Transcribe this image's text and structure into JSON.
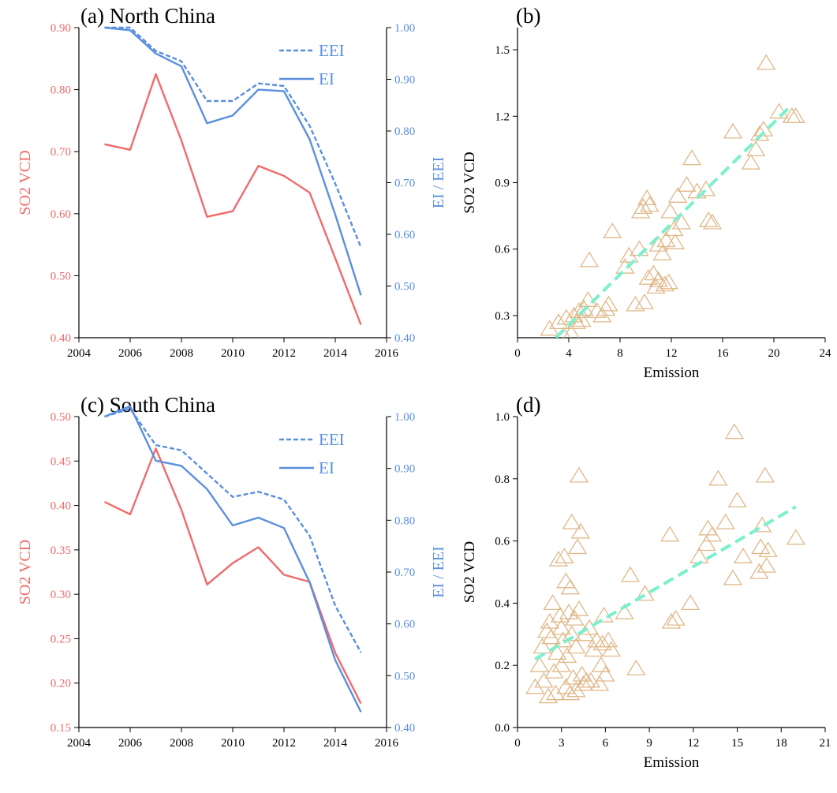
{
  "colors": {
    "so2": "#f06b6b",
    "ei": "#5b8fde",
    "scatter": "#e0b98a",
    "fit": "#7af0cc",
    "axis": "#000000"
  },
  "chart_data": [
    {
      "id": "a",
      "type": "line",
      "title": "(a) North China",
      "x": [
        2005,
        2006,
        2007,
        2008,
        2009,
        2010,
        2011,
        2012,
        2013,
        2014,
        2015
      ],
      "xlim": [
        2004,
        2016
      ],
      "xticks": [
        "2004",
        "2006",
        "2008",
        "2010",
        "2012",
        "2014",
        "2016"
      ],
      "ylabel_left": "SO2 VCD",
      "ylim_left": [
        0.4,
        0.9
      ],
      "yticks_left": [
        "0.40",
        "0.50",
        "0.60",
        "0.70",
        "0.80",
        "0.90"
      ],
      "ylabel_right": "EI / EEI",
      "ylim_right": [
        0.4,
        1.0
      ],
      "yticks_right": [
        "0.40",
        "0.50",
        "0.60",
        "0.70",
        "0.80",
        "0.90",
        "1.00"
      ],
      "legend": {
        "position": "top-right",
        "entries": [
          "EEI",
          "EI"
        ]
      },
      "series": [
        {
          "name": "SO2 VCD",
          "axis": "left",
          "style": "solid",
          "values": [
            0.712,
            0.703,
            0.825,
            0.718,
            0.595,
            0.604,
            0.677,
            0.661,
            0.634,
            0.528,
            0.421
          ]
        },
        {
          "name": "EEI",
          "axis": "right",
          "style": "dashed",
          "values": [
            1.0,
            1.0,
            0.955,
            0.935,
            0.858,
            0.858,
            0.892,
            0.887,
            0.81,
            0.698,
            0.575
          ]
        },
        {
          "name": "EI",
          "axis": "right",
          "style": "solid",
          "values": [
            1.0,
            0.995,
            0.95,
            0.925,
            0.815,
            0.83,
            0.88,
            0.877,
            0.784,
            0.638,
            0.482
          ]
        }
      ]
    },
    {
      "id": "b",
      "type": "scatter",
      "title": "(b)",
      "xlabel": "Emission",
      "ylabel": "SO2 VCD",
      "xlim": [
        0,
        24
      ],
      "xticks": [
        "0",
        "4",
        "8",
        "12",
        "16",
        "20",
        "24"
      ],
      "ylim": [
        0.2,
        1.6
      ],
      "yticks": [
        "0.3",
        "0.6",
        "0.9",
        "1.2",
        "1.5"
      ],
      "points": [
        [
          2.5,
          0.24
        ],
        [
          3.2,
          0.27
        ],
        [
          3.6,
          0.21
        ],
        [
          3.8,
          0.29
        ],
        [
          4.2,
          0.22
        ],
        [
          4.4,
          0.3
        ],
        [
          4.6,
          0.27
        ],
        [
          4.8,
          0.32
        ],
        [
          5.0,
          0.28
        ],
        [
          5.2,
          0.33
        ],
        [
          5.5,
          0.37
        ],
        [
          5.6,
          0.55
        ],
        [
          6.2,
          0.32
        ],
        [
          6.6,
          0.3
        ],
        [
          6.9,
          0.33
        ],
        [
          7.1,
          0.35
        ],
        [
          7.4,
          0.68
        ],
        [
          8.4,
          0.52
        ],
        [
          8.7,
          0.57
        ],
        [
          9.2,
          0.35
        ],
        [
          9.5,
          0.6
        ],
        [
          9.6,
          0.77
        ],
        [
          9.8,
          0.79
        ],
        [
          9.9,
          0.36
        ],
        [
          10.1,
          0.83
        ],
        [
          10.3,
          0.8
        ],
        [
          10.2,
          0.47
        ],
        [
          10.6,
          0.49
        ],
        [
          10.8,
          0.43
        ],
        [
          11.0,
          0.46
        ],
        [
          11.0,
          0.62
        ],
        [
          11.3,
          0.58
        ],
        [
          11.5,
          0.44
        ],
        [
          11.6,
          0.64
        ],
        [
          11.8,
          0.45
        ],
        [
          11.9,
          0.77
        ],
        [
          12.2,
          0.69
        ],
        [
          12.3,
          0.63
        ],
        [
          12.5,
          0.84
        ],
        [
          12.8,
          0.72
        ],
        [
          13.2,
          0.89
        ],
        [
          13.6,
          1.01
        ],
        [
          14.0,
          0.86
        ],
        [
          14.7,
          0.87
        ],
        [
          14.9,
          0.73
        ],
        [
          15.2,
          0.72
        ],
        [
          16.8,
          1.13
        ],
        [
          18.2,
          0.99
        ],
        [
          18.6,
          1.05
        ],
        [
          18.9,
          1.12
        ],
        [
          19.2,
          1.14
        ],
        [
          19.4,
          1.44
        ],
        [
          20.4,
          1.22
        ],
        [
          21.4,
          1.2
        ],
        [
          21.7,
          1.2
        ]
      ],
      "fit": {
        "x": [
          3.0,
          21.2
        ],
        "y": [
          0.2,
          1.24
        ]
      }
    },
    {
      "id": "c",
      "type": "line",
      "title": "(c) South China",
      "x": [
        2005,
        2006,
        2007,
        2008,
        2009,
        2010,
        2011,
        2012,
        2013,
        2014,
        2015
      ],
      "xlim": [
        2004,
        2016
      ],
      "xticks": [
        "2004",
        "2006",
        "2008",
        "2010",
        "2012",
        "2014",
        "2016"
      ],
      "ylabel_left": "SO2 VCD",
      "ylim_left": [
        0.15,
        0.5
      ],
      "yticks_left": [
        "0.15",
        "0.20",
        "0.25",
        "0.30",
        "0.35",
        "0.40",
        "0.45",
        "0.50"
      ],
      "ylabel_right": "EI / EEI",
      "ylim_right": [
        0.4,
        1.0
      ],
      "yticks_right": [
        "0.40",
        "0.50",
        "0.60",
        "0.70",
        "0.80",
        "0.90",
        "1.00"
      ],
      "legend": {
        "position": "top-right",
        "entries": [
          "EEI",
          "EI"
        ]
      },
      "series": [
        {
          "name": "SO2 VCD",
          "axis": "left",
          "style": "solid",
          "values": [
            0.404,
            0.39,
            0.464,
            0.395,
            0.311,
            0.335,
            0.353,
            0.322,
            0.314,
            0.234,
            0.177
          ]
        },
        {
          "name": "EEI",
          "axis": "right",
          "style": "dashed",
          "values": [
            1.0,
            1.015,
            0.945,
            0.935,
            0.89,
            0.845,
            0.855,
            0.84,
            0.77,
            0.635,
            0.545
          ]
        },
        {
          "name": "EI",
          "axis": "right",
          "style": "solid",
          "values": [
            1.0,
            1.02,
            0.915,
            0.905,
            0.86,
            0.79,
            0.805,
            0.785,
            0.68,
            0.53,
            0.43
          ]
        }
      ]
    },
    {
      "id": "d",
      "type": "scatter",
      "title": "(d)",
      "xlabel": "Emission",
      "ylabel": "SO2 VCD",
      "xlim": [
        0,
        21
      ],
      "xticks": [
        "0",
        "3",
        "6",
        "9",
        "12",
        "15",
        "18",
        "21"
      ],
      "ylim": [
        0.0,
        1.0
      ],
      "yticks": [
        "0.0",
        "0.2",
        "0.4",
        "0.6",
        "0.8",
        "1.0"
      ],
      "points": [
        [
          1.2,
          0.13
        ],
        [
          1.5,
          0.2
        ],
        [
          1.7,
          0.26
        ],
        [
          1.8,
          0.15
        ],
        [
          2.0,
          0.31
        ],
        [
          2.1,
          0.1
        ],
        [
          2.2,
          0.34
        ],
        [
          2.3,
          0.29
        ],
        [
          2.4,
          0.4
        ],
        [
          2.5,
          0.18
        ],
        [
          2.6,
          0.11
        ],
        [
          2.7,
          0.24
        ],
        [
          2.8,
          0.54
        ],
        [
          2.9,
          0.36
        ],
        [
          3.0,
          0.32
        ],
        [
          3.0,
          0.2
        ],
        [
          3.1,
          0.28
        ],
        [
          3.2,
          0.55
        ],
        [
          3.3,
          0.47
        ],
        [
          3.3,
          0.13
        ],
        [
          3.4,
          0.23
        ],
        [
          3.5,
          0.37
        ],
        [
          3.6,
          0.45
        ],
        [
          3.6,
          0.11
        ],
        [
          3.7,
          0.66
        ],
        [
          3.7,
          0.3
        ],
        [
          3.8,
          0.16
        ],
        [
          3.9,
          0.35
        ],
        [
          4.0,
          0.26
        ],
        [
          4.0,
          0.12
        ],
        [
          4.1,
          0.58
        ],
        [
          4.2,
          0.81
        ],
        [
          4.2,
          0.38
        ],
        [
          4.3,
          0.63
        ],
        [
          4.4,
          0.17
        ],
        [
          4.5,
          0.14
        ],
        [
          4.6,
          0.3
        ],
        [
          4.7,
          0.15
        ],
        [
          4.9,
          0.32
        ],
        [
          5.0,
          0.15
        ],
        [
          5.2,
          0.25
        ],
        [
          5.4,
          0.28
        ],
        [
          5.6,
          0.14
        ],
        [
          5.7,
          0.2
        ],
        [
          5.8,
          0.27
        ],
        [
          5.9,
          0.36
        ],
        [
          6.0,
          0.17
        ],
        [
          6.2,
          0.28
        ],
        [
          6.4,
          0.25
        ],
        [
          7.3,
          0.37
        ],
        [
          7.7,
          0.49
        ],
        [
          8.1,
          0.19
        ],
        [
          8.7,
          0.43
        ],
        [
          10.4,
          0.62
        ],
        [
          10.5,
          0.34
        ],
        [
          10.8,
          0.35
        ],
        [
          11.8,
          0.4
        ],
        [
          12.4,
          0.55
        ],
        [
          12.9,
          0.59
        ],
        [
          13.0,
          0.64
        ],
        [
          13.3,
          0.62
        ],
        [
          13.7,
          0.8
        ],
        [
          14.2,
          0.66
        ],
        [
          14.7,
          0.48
        ],
        [
          14.8,
          0.95
        ],
        [
          15.0,
          0.73
        ],
        [
          15.4,
          0.55
        ],
        [
          16.5,
          0.5
        ],
        [
          16.6,
          0.58
        ],
        [
          16.7,
          0.65
        ],
        [
          16.9,
          0.81
        ],
        [
          17.0,
          0.52
        ],
        [
          17.1,
          0.57
        ],
        [
          19.0,
          0.61
        ]
      ],
      "fit": {
        "x": [
          1.2,
          19.0
        ],
        "y": [
          0.22,
          0.71
        ]
      }
    }
  ]
}
